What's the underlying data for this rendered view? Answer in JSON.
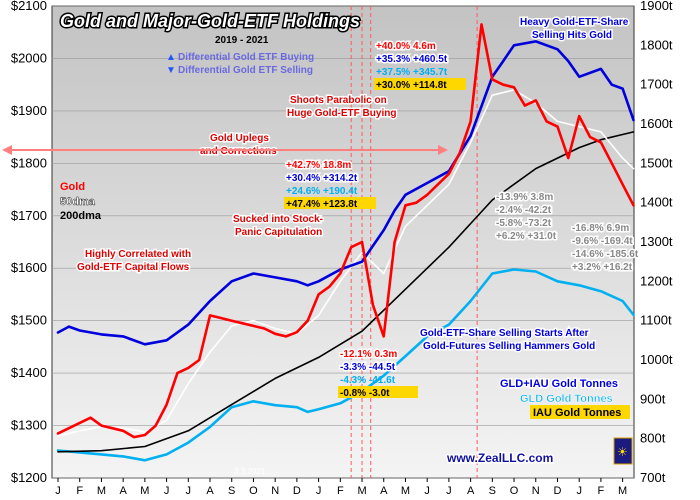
{
  "chart_data": {
    "type": "line",
    "title": "Gold and Major-Gold-ETF Holdings",
    "subtitle": "2019 - 2021",
    "ylim_left": [
      1200,
      2100
    ],
    "ylim_right": [
      700,
      1900
    ],
    "left_ticks": [
      "$1200",
      "$1300",
      "$1400",
      "$1500",
      "$1600",
      "$1700",
      "$1800",
      "$1900",
      "$2000",
      "$2100"
    ],
    "right_ticks": [
      "700t",
      "800t",
      "900t",
      "1000t",
      "1100t",
      "1200t",
      "1300t",
      "1400t",
      "1500t",
      "1600t",
      "1700t",
      "1800t",
      "1900t"
    ],
    "months": [
      "J",
      "F",
      "M",
      "A",
      "M",
      "J",
      "J",
      "A",
      "S",
      "O",
      "N",
      "D",
      "J",
      "F",
      "M",
      "A",
      "M",
      "J",
      "J",
      "A",
      "S",
      "O",
      "N",
      "D",
      "J",
      "F",
      "M"
    ],
    "series": [
      {
        "name": "Gold",
        "color": "#ff0000",
        "axis": "left",
        "points": [
          [
            0,
            1285
          ],
          [
            0.5,
            1295
          ],
          [
            1,
            1305
          ],
          [
            1.5,
            1315
          ],
          [
            2,
            1300
          ],
          [
            2.5,
            1295
          ],
          [
            3,
            1290
          ],
          [
            3.5,
            1278
          ],
          [
            4,
            1282
          ],
          [
            4.5,
            1300
          ],
          [
            5,
            1340
          ],
          [
            5.5,
            1400
          ],
          [
            6,
            1410
          ],
          [
            6.5,
            1425
          ],
          [
            7,
            1510
          ],
          [
            7.5,
            1505
          ],
          [
            8,
            1500
          ],
          [
            8.5,
            1495
          ],
          [
            9,
            1490
          ],
          [
            9.5,
            1485
          ],
          [
            10,
            1475
          ],
          [
            10.5,
            1470
          ],
          [
            11,
            1478
          ],
          [
            11.5,
            1500
          ],
          [
            12,
            1550
          ],
          [
            12.5,
            1565
          ],
          [
            13,
            1590
          ],
          [
            13.5,
            1640
          ],
          [
            14,
            1650
          ],
          [
            14.5,
            1530
          ],
          [
            15,
            1470
          ],
          [
            15.5,
            1650
          ],
          [
            16,
            1720
          ],
          [
            16.5,
            1725
          ],
          [
            17,
            1740
          ],
          [
            17.5,
            1760
          ],
          [
            18,
            1780
          ],
          [
            18.5,
            1820
          ],
          [
            19,
            1880
          ],
          [
            19.5,
            2065
          ],
          [
            20,
            1960
          ],
          [
            20.5,
            1950
          ],
          [
            21,
            1945
          ],
          [
            21.5,
            1910
          ],
          [
            22,
            1920
          ],
          [
            22.5,
            1880
          ],
          [
            23,
            1870
          ],
          [
            23.5,
            1810
          ],
          [
            24,
            1890
          ],
          [
            24.5,
            1850
          ],
          [
            25,
            1840
          ],
          [
            25.5,
            1800
          ],
          [
            26,
            1760
          ],
          [
            26.5,
            1720
          ]
        ]
      },
      {
        "name": "50dma",
        "color": "#ffffff",
        "axis": "left",
        "points": [
          [
            0,
            1280
          ],
          [
            1,
            1290
          ],
          [
            2,
            1298
          ],
          [
            3,
            1295
          ],
          [
            4,
            1288
          ],
          [
            5,
            1310
          ],
          [
            6,
            1380
          ],
          [
            7,
            1440
          ],
          [
            8,
            1490
          ],
          [
            9,
            1500
          ],
          [
            10,
            1485
          ],
          [
            11,
            1475
          ],
          [
            12,
            1510
          ],
          [
            13,
            1575
          ],
          [
            14,
            1630
          ],
          [
            15,
            1590
          ],
          [
            16,
            1680
          ],
          [
            17,
            1720
          ],
          [
            18,
            1760
          ],
          [
            19,
            1840
          ],
          [
            20,
            1930
          ],
          [
            21,
            1940
          ],
          [
            22,
            1915
          ],
          [
            23,
            1880
          ],
          [
            24,
            1870
          ],
          [
            25,
            1860
          ],
          [
            26,
            1810
          ],
          [
            26.5,
            1790
          ]
        ]
      },
      {
        "name": "200dma",
        "color": "#000000",
        "axis": "left",
        "points": [
          [
            0,
            1250
          ],
          [
            2,
            1252
          ],
          [
            4,
            1260
          ],
          [
            6,
            1290
          ],
          [
            8,
            1340
          ],
          [
            10,
            1390
          ],
          [
            12,
            1430
          ],
          [
            14,
            1480
          ],
          [
            16,
            1560
          ],
          [
            18,
            1640
          ],
          [
            20,
            1730
          ],
          [
            22,
            1790
          ],
          [
            24,
            1830
          ],
          [
            25,
            1845
          ],
          [
            26,
            1855
          ],
          [
            26.5,
            1860
          ]
        ]
      },
      {
        "name": "GLD+IAU Gold Tonnes",
        "color": "#0000dd",
        "axis": "right",
        "points": [
          [
            0,
            1070
          ],
          [
            0.5,
            1085
          ],
          [
            1,
            1075
          ],
          [
            2,
            1065
          ],
          [
            3,
            1060
          ],
          [
            4,
            1040
          ],
          [
            5,
            1050
          ],
          [
            6,
            1090
          ],
          [
            7,
            1150
          ],
          [
            8,
            1200
          ],
          [
            9,
            1220
          ],
          [
            10,
            1210
          ],
          [
            11,
            1200
          ],
          [
            11.5,
            1190
          ],
          [
            12,
            1200
          ],
          [
            13,
            1230
          ],
          [
            14,
            1250
          ],
          [
            14.5,
            1290
          ],
          [
            15,
            1330
          ],
          [
            15.5,
            1380
          ],
          [
            16,
            1420
          ],
          [
            17,
            1450
          ],
          [
            18,
            1480
          ],
          [
            19,
            1570
          ],
          [
            20,
            1720
          ],
          [
            20.5,
            1760
          ],
          [
            21,
            1800
          ],
          [
            22,
            1810
          ],
          [
            23,
            1790
          ],
          [
            23.5,
            1760
          ],
          [
            24,
            1720
          ],
          [
            25,
            1740
          ],
          [
            25.5,
            1700
          ],
          [
            26,
            1690
          ],
          [
            26.5,
            1610
          ]
        ]
      },
      {
        "name": "GLD Gold Tonnes",
        "color": "#00b0f0",
        "axis": "right",
        "points": [
          [
            0,
            770
          ],
          [
            1,
            765
          ],
          [
            2,
            760
          ],
          [
            3,
            755
          ],
          [
            4,
            745
          ],
          [
            5,
            760
          ],
          [
            6,
            790
          ],
          [
            7,
            830
          ],
          [
            8,
            880
          ],
          [
            9,
            895
          ],
          [
            10,
            885
          ],
          [
            11,
            880
          ],
          [
            11.5,
            868
          ],
          [
            12,
            875
          ],
          [
            13,
            890
          ],
          [
            14,
            920
          ],
          [
            15,
            960
          ],
          [
            16,
            1010
          ],
          [
            17,
            1060
          ],
          [
            18,
            1090
          ],
          [
            19,
            1150
          ],
          [
            20,
            1220
          ],
          [
            21,
            1230
          ],
          [
            22,
            1225
          ],
          [
            23,
            1200
          ],
          [
            24,
            1190
          ],
          [
            25,
            1175
          ],
          [
            26,
            1150
          ],
          [
            26.5,
            1115
          ]
        ]
      }
    ],
    "legend": [
      "GLD+IAU Gold Tonnes",
      "GLD Gold Tonnes",
      "IAU Gold Tonnes"
    ],
    "legend_placement": "bottom-right"
  },
  "labels": {
    "title": "Gold and Major-Gold-ETF Holdings",
    "subtitle": "2019 - 2021",
    "diff_buy": "Differential Gold ETF Buying",
    "diff_sell": "Differential Gold ETF Selling",
    "heavy1": "Heavy Gold-ETF-Share",
    "heavy2": "Selling Hits Gold",
    "shoots1": "Shoots Parabolic on",
    "shoots2": "Huge Gold-ETF Buying",
    "uplegs1": "Gold Uplegs",
    "uplegs2": "and Corrections",
    "sucked1": "Sucked into Stock-",
    "sucked2": "Panic Capitulation",
    "highly1": "Highly Correlated with",
    "highly2": "Gold-ETF Capital Flows",
    "selling1": "Gold-ETF-Share Selling Starts After",
    "selling2": "Gold-Futures Selling Hammers Gold",
    "gold_label": "Gold",
    "dma50": "50dma",
    "dma200": "200dma",
    "date_mark": "3.3.2021",
    "url": "www.ZealLLC.com"
  },
  "stats": {
    "aug": [
      "+40.0%  4.6m",
      "+35.3% +460.5t",
      "+37.5% +345.7t",
      "+30.0% +114.8t"
    ],
    "mar": [
      "+42.7%  18.8m",
      "+30.4% +314.2t",
      "+24.6% +190.4t",
      "+47.4% +123.8t"
    ],
    "dec": [
      "-13.9%  3.8m",
      "-2.4%  -42.2t",
      "-5.8%  -73.2t",
      "+6.2% +31.0t"
    ],
    "end": [
      "-16.8%  6.9m",
      "-9.6%  -169.4t",
      "-14.6% -185.6t",
      "+3.2% +16.2t"
    ],
    "panic": [
      "-12.1%  0.3m",
      "-3.3%  -44.5t",
      "-4.3%  -41.6t",
      "-0.8%  -3.0t"
    ]
  },
  "colors": {
    "gold": "#ff0000",
    "total": "#0000dd",
    "gld": "#00b0f0",
    "iau": "#ffd700",
    "panel": "#ffffff"
  }
}
